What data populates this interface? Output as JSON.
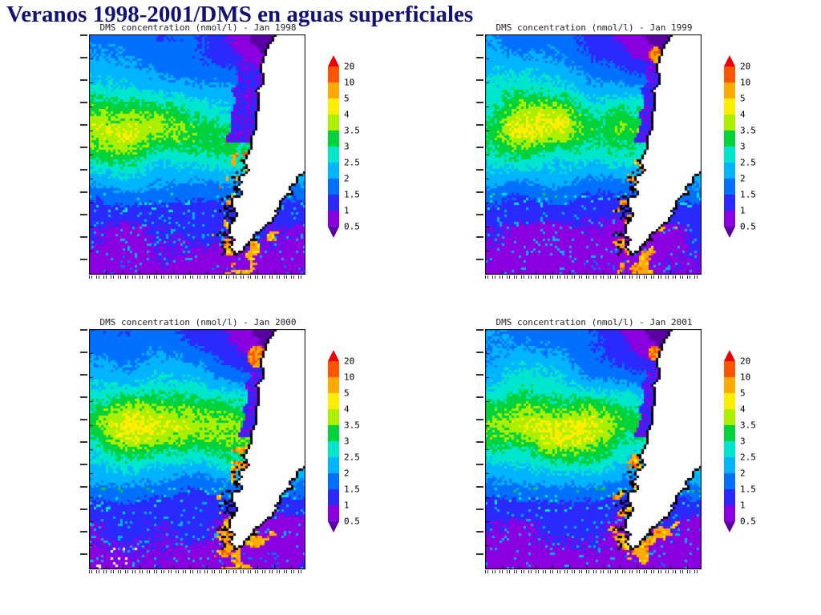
{
  "slide": {
    "title": "Veranos 1998-2001/DMS en aguas superficiales",
    "title_color": "#121273",
    "background": "#ffffff"
  },
  "panels": [
    {
      "title": "DMS concentration (nmol/l) - Jan 1998",
      "month": "Jan 1998",
      "seed": 1
    },
    {
      "title": "DMS concentration (nmol/l) - Jan 1999",
      "month": "Jan 1999",
      "seed": 2
    },
    {
      "title": "DMS concentration (nmol/l) - Jan 2000",
      "month": "Jan 2000",
      "seed": 3
    },
    {
      "title": "DMS concentration (nmol/l) - Jan 2001",
      "month": "Jan 2001",
      "seed": 4
    }
  ],
  "colorbar": {
    "labels_top_to_bottom": [
      "20",
      "10",
      "5",
      "4",
      "3.5",
      "3",
      "2.5",
      "2",
      "1.5",
      "1",
      "0.5"
    ]
  },
  "chart_data": {
    "type": "heatmap",
    "title": "Veranos 1998-2001/DMS en aguas superficiales",
    "variable": "DMS concentration (nmol/l)",
    "panels": [
      "Jan 1998",
      "Jan 1999",
      "Jan 2000",
      "Jan 2001"
    ],
    "colorbar_levels": [
      0.5,
      1,
      1.5,
      2,
      2.5,
      3,
      3.5,
      4,
      5,
      10,
      20
    ],
    "colorbar_labels_top_to_bottom": [
      "20",
      "10",
      "5",
      "4",
      "3.5",
      "3",
      "2.5",
      "2",
      "1.5",
      "1",
      "0.5"
    ],
    "palette_low_to_high": [
      "#5b00a5",
      "#8a00e0",
      "#2a2aff",
      "#0070ff",
      "#00b4ff",
      "#00e6cc",
      "#00d23c",
      "#aaee00",
      "#ffee00",
      "#ffaa00",
      "#ff5500",
      "#ee0000"
    ],
    "legend_position": "right of each map, vertical bar with pointed ends",
    "grid": false,
    "description": "Four gridded maps of sea-surface DMS concentration over the Southeast Pacific next to the southern South American coast (land shown white with black coastline). A zonal band of high values (green to yellow-green, 3-4 nmol/l) crosses the mid-left of each map; low values (purple, <1 nmol/l) occupy the northeast corner near the coast and the southern third; orange/red patches (>5 nmol/l) appear along the southern Chilean fjord coast and near the continental tip; Jan 1999-2001 also show an orange coastal hotspot in the upper right."
  }
}
